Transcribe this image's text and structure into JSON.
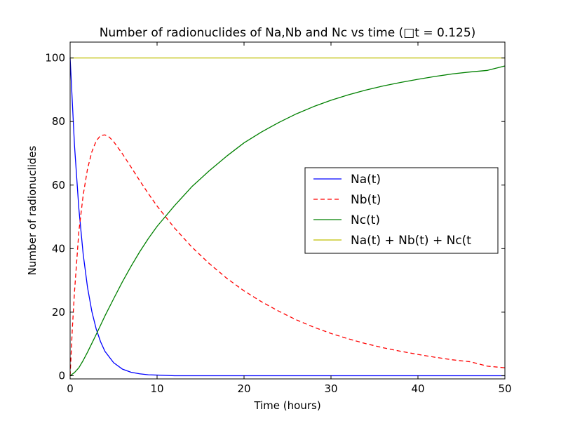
{
  "chart_data": {
    "type": "line",
    "title": "Number of radionuclides of Na,Nb and Nc vs time (□t = 0.125)",
    "xlabel": "Time (hours)",
    "ylabel": "Number of radionuclides",
    "xlim": [
      0,
      50
    ],
    "ylim": [
      -1,
      105
    ],
    "xticks": [
      0,
      10,
      20,
      30,
      40,
      50
    ],
    "yticks": [
      0,
      20,
      40,
      60,
      80,
      100
    ],
    "grid": false,
    "legend_position": "center-right",
    "series": [
      {
        "name": "Na(t)",
        "color": "#0000ff",
        "dash": "solid",
        "x": [
          0,
          0.5,
          1,
          1.5,
          2,
          2.5,
          3,
          3.5,
          4,
          5,
          6,
          7,
          8,
          9,
          10,
          12,
          15,
          20,
          25,
          30,
          35,
          40,
          45,
          50
        ],
        "y": [
          100,
          72.6,
          52.7,
          38.3,
          27.8,
          20.2,
          14.7,
          10.7,
          7.7,
          4.1,
          2.1,
          1.1,
          0.6,
          0.3,
          0.2,
          0,
          0,
          0,
          0,
          0,
          0,
          0,
          0,
          0
        ]
      },
      {
        "name": "Nb(t)",
        "color": "#ff0000",
        "dash": "dashed",
        "x": [
          0,
          0.25,
          0.5,
          0.75,
          1,
          1.5,
          2,
          2.5,
          3,
          3.5,
          4,
          4.5,
          5,
          6,
          7,
          8,
          9,
          10,
          12,
          14,
          16,
          18,
          20,
          22,
          24,
          26,
          28,
          30,
          32,
          34,
          36,
          38,
          40,
          42,
          44,
          46,
          48,
          50
        ],
        "y": [
          0,
          14.6,
          26.3,
          35.7,
          45.3,
          56.8,
          65.1,
          70.5,
          73.9,
          75.6,
          75.8,
          75.1,
          73.7,
          69.9,
          65.7,
          61.4,
          57.3,
          53.4,
          46.5,
          40.5,
          35.3,
          30.7,
          26.7,
          23.3,
          20.3,
          17.6,
          15.3,
          13.3,
          11.6,
          10.1,
          8.8,
          7.7,
          6.7,
          5.8,
          5.0,
          4.4,
          3.0,
          2.5
        ]
      },
      {
        "name": "Nc(t)",
        "color": "#008000",
        "dash": "solid",
        "x": [
          0,
          0.5,
          1,
          1.5,
          2,
          2.5,
          3,
          3.5,
          4,
          5,
          6,
          7,
          8,
          9,
          10,
          12,
          14,
          16,
          18,
          20,
          22,
          24,
          26,
          28,
          30,
          32,
          34,
          36,
          38,
          40,
          42,
          44,
          46,
          48,
          50
        ],
        "y": [
          0,
          1.0,
          2.5,
          4.8,
          7.4,
          10.2,
          13.0,
          15.9,
          18.8,
          24.2,
          29.5,
          34.4,
          39.0,
          43.2,
          47.0,
          53.5,
          59.5,
          64.5,
          69.1,
          73.3,
          76.7,
          79.7,
          82.4,
          84.7,
          86.7,
          88.4,
          89.9,
          91.2,
          92.3,
          93.3,
          94.2,
          95.0,
          95.6,
          96.1,
          97.5
        ]
      },
      {
        "name": "Na(t) + Nb(t) + Nc(t",
        "color": "#bfbf00",
        "dash": "solid",
        "x": [
          0,
          50
        ],
        "y": [
          100,
          100
        ]
      }
    ]
  }
}
